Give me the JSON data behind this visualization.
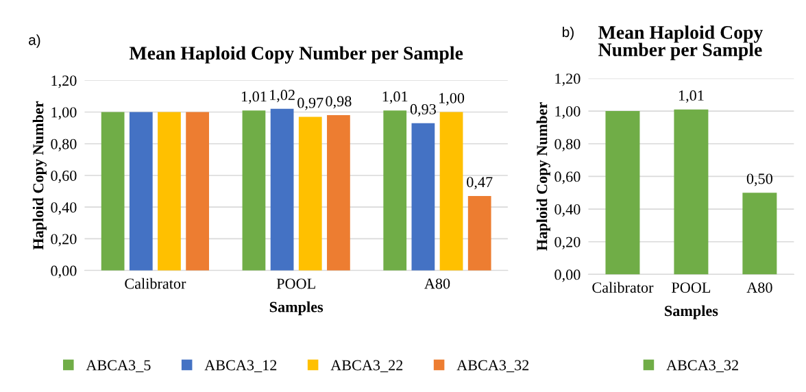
{
  "chart_data": [
    {
      "type": "bar",
      "title": "Mean Haploid Copy Number per Sample",
      "xlabel": "Samples",
      "ylabel": "Haploid Copy Number",
      "annotations": [
        "a)"
      ],
      "categories": [
        "Calibrator",
        "POOL",
        "A80"
      ],
      "series": [
        {
          "name": "ABCA3_5",
          "color": "#70ad47",
          "values": [
            1.0,
            1.01,
            1.01
          ],
          "value_labels": [
            null,
            "1,01",
            "1,01"
          ]
        },
        {
          "name": "ABCA3_12",
          "color": "#4472c4",
          "values": [
            1.0,
            1.02,
            0.93
          ],
          "value_labels": [
            null,
            "1,02",
            "0,93"
          ]
        },
        {
          "name": "ABCA3_22",
          "color": "#ffc000",
          "values": [
            1.0,
            0.97,
            1.0
          ],
          "value_labels": [
            null,
            "0,97",
            "1,00"
          ]
        },
        {
          "name": "ABCA3_32",
          "color": "#ed7d31",
          "values": [
            1.0,
            0.98,
            0.47
          ],
          "value_labels": [
            null,
            "0,98",
            "0,47"
          ]
        }
      ],
      "ylim": [
        0,
        1.2
      ],
      "yticks": [
        {
          "value": 0,
          "label": "0,00"
        },
        {
          "value": 0.2,
          "label": "0,20"
        },
        {
          "value": 0.4,
          "label": "0,40"
        },
        {
          "value": 0.6,
          "label": "0,60"
        },
        {
          "value": 0.8,
          "label": "0,80"
        },
        {
          "value": 1.0,
          "label": "1,00"
        },
        {
          "value": 1.2,
          "label": "1,20"
        }
      ],
      "grid": "y",
      "legend": "bottom"
    },
    {
      "type": "bar",
      "title": "Mean Haploid Copy Number per Sample",
      "xlabel": "Samples",
      "ylabel": "Haploid Copy Number",
      "annotations": [
        "b)"
      ],
      "categories": [
        "Calibrator",
        "POOL",
        "A80"
      ],
      "series": [
        {
          "name": "ABCA3_32",
          "color": "#70ad47",
          "values": [
            1.0,
            1.01,
            0.5
          ],
          "value_labels": [
            null,
            "1,01",
            "0,50"
          ]
        }
      ],
      "ylim": [
        0,
        1.2
      ],
      "yticks": [
        {
          "value": 0,
          "label": "0,00"
        },
        {
          "value": 0.2,
          "label": "0,20"
        },
        {
          "value": 0.4,
          "label": "0,40"
        },
        {
          "value": 0.6,
          "label": "0,60"
        },
        {
          "value": 0.8,
          "label": "0,80"
        },
        {
          "value": 1.0,
          "label": "1,00"
        },
        {
          "value": 1.2,
          "label": "1,20"
        }
      ],
      "grid": "y",
      "legend": "bottom"
    }
  ]
}
